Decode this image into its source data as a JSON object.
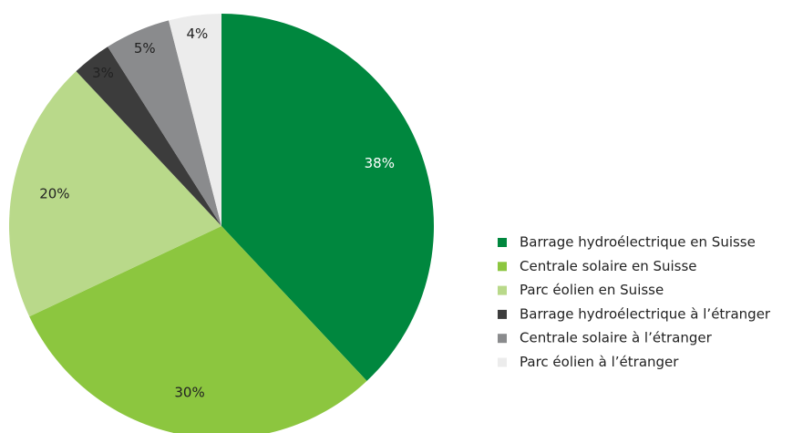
{
  "chart_data": {
    "type": "pie",
    "categories": [
      "Barrage hydroélectrique en Suisse",
      "Centrale solaire en Suisse",
      "Parc éolien en Suisse",
      "Barrage hydroélectrique à l’étranger",
      "Centrale solaire à l’étranger",
      "Parc éolien à l’étranger"
    ],
    "values": [
      38,
      30,
      20,
      3,
      5,
      4
    ],
    "value_labels": [
      "38%",
      "30%",
      "20%",
      "3%",
      "5%",
      "4%"
    ],
    "colors": [
      "#00873e",
      "#8cc63f",
      "#b9d98a",
      "#3c3c3c",
      "#8a8b8d",
      "#ececec"
    ],
    "legend": "right"
  }
}
